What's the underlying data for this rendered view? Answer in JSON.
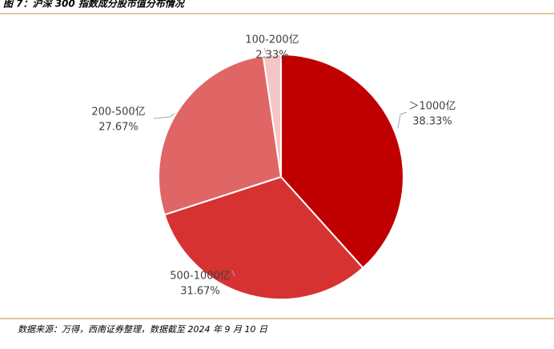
{
  "chart_data": {
    "type": "pie",
    "title": "图 7：沪深 300 指数成分股市值分布情况",
    "categories": [
      "＞1000亿",
      "500-1000亿",
      "200-500亿",
      "100-200亿"
    ],
    "values": [
      38.33,
      31.67,
      27.67,
      2.33
    ],
    "value_labels": [
      "38.33%",
      "31.67%",
      "27.67%",
      "2.33%"
    ],
    "colors": [
      "#c00000",
      "#d63232",
      "#e06666",
      "#f4c6c6"
    ],
    "note": "数据来源：万得，西南证券整理，数据截至 2024 年 9 月 10 日"
  }
}
